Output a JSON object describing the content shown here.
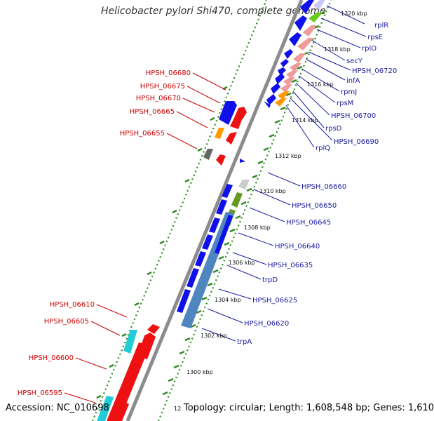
{
  "title": "Helicobacter pylori Shi470, complete genome",
  "footer": {
    "accession": "Accession: NC_010698",
    "topology": "Topology: circular; Length: 1,608,548 bp; Genes: 1,610",
    "scale_fragment": "12"
  },
  "colors": {
    "backbone": "#8c8c8c",
    "dots": "#2e8b22",
    "left_label": "#cc0000",
    "right_label": "#1a1aa0",
    "blue": "#1010e8",
    "red": "#ee1111",
    "pink": "#f09a9a",
    "green": "#66cc1a",
    "orange": "#ff9900",
    "cyan": "#22ccd6",
    "steel": "#4f86c0",
    "olive": "#669922",
    "grey": "#666666"
  },
  "scale_labels": [
    "1320 kbp",
    "1318 kbp",
    "1316 kbp",
    "1314 kbp",
    "1312 kbp",
    "1310 kbp",
    "1308 kbp",
    "1306 kbp",
    "1304 kbp",
    "1302 kbp",
    "1300 kbp"
  ],
  "left_labels": [
    "HPSH_06680",
    "HPSH_06675",
    "HPSH_06670",
    "HPSH_06665",
    "HPSH_06655",
    "HPSH_06610",
    "HPSH_06605",
    "HPSH_06600",
    "HPSH_06595"
  ],
  "right_labels": [
    "rplR",
    "rpsE",
    "rplO",
    "secY",
    "HPSH_06720",
    "infA",
    "rpmJ",
    "rpsM",
    "HPSH_06700",
    "rpsD",
    "HPSH_06690",
    "rplQ",
    "HPSH_06660",
    "HPSH_06650",
    "HPSH_06645",
    "HPSH_06640",
    "HPSH_06635",
    "trpD",
    "HPSH_06625",
    "HPSH_06620",
    "trpA"
  ]
}
